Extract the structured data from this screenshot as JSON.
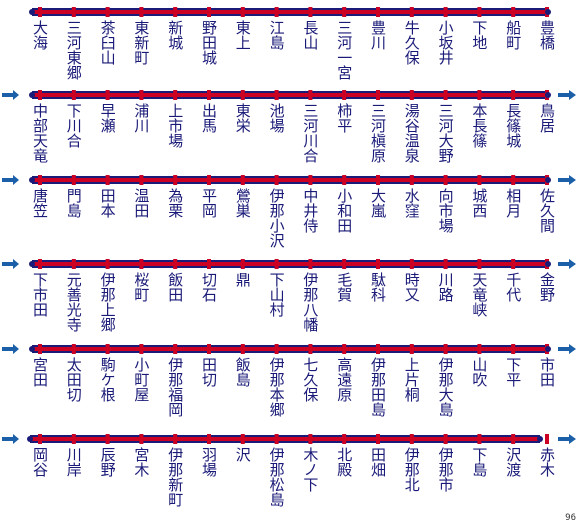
{
  "rows": [
    {
      "stations": [
        "大海",
        "三河東郷",
        "茶臼山",
        "東新町",
        "新城",
        "野田城",
        "東上",
        "江島",
        "長山",
        "三河一宮",
        "豊川",
        "牛久保",
        "小坂井",
        "下地",
        "船町",
        "豊橋"
      ]
    },
    {
      "stations": [
        "中部天竜",
        "下川合",
        "早瀬",
        "浦川",
        "上市場",
        "出馬",
        "東栄",
        "池場",
        "三河川合",
        "柿平",
        "三河槇原",
        "湯谷温泉",
        "三河大野",
        "本長篠",
        "長篠城",
        "鳥居"
      ]
    },
    {
      "stations": [
        "唐笠",
        "門島",
        "田本",
        "温田",
        "為栗",
        "平岡",
        "鶯巣",
        "伊那小沢",
        "中井侍",
        "小和田",
        "大嵐",
        "水窪",
        "向市場",
        "城西",
        "相月",
        "佐久間"
      ]
    },
    {
      "stations": [
        "下市田",
        "元善光寺",
        "伊那上郷",
        "桜町",
        "飯田",
        "切石",
        "鼎",
        "下山村",
        "伊那八幡",
        "毛賀",
        "駄科",
        "時又",
        "川路",
        "天竜峡",
        "千代",
        "金野"
      ]
    },
    {
      "stations": [
        "宮田",
        "太田切",
        "駒ケ根",
        "小町屋",
        "伊那福岡",
        "田切",
        "飯島",
        "伊那本郷",
        "七久保",
        "高遠原",
        "伊那田島",
        "上片桐",
        "伊那大島",
        "山吹",
        "下平",
        "市田"
      ]
    },
    {
      "stations": [
        "岡谷",
        "川岸",
        "辰野",
        "宮木",
        "伊那新町",
        "羽場",
        "沢",
        "伊那松島",
        "木ノ下",
        "北殿",
        "田畑",
        "伊那北",
        "伊那市",
        "下島",
        "沢渡",
        "赤木"
      ]
    }
  ],
  "page_number": "96",
  "colors": {
    "rail_navy": "#1a1a78",
    "rail_red": "#cc0022",
    "text": "#1a1a78",
    "arrow": "#1a5fa8"
  }
}
